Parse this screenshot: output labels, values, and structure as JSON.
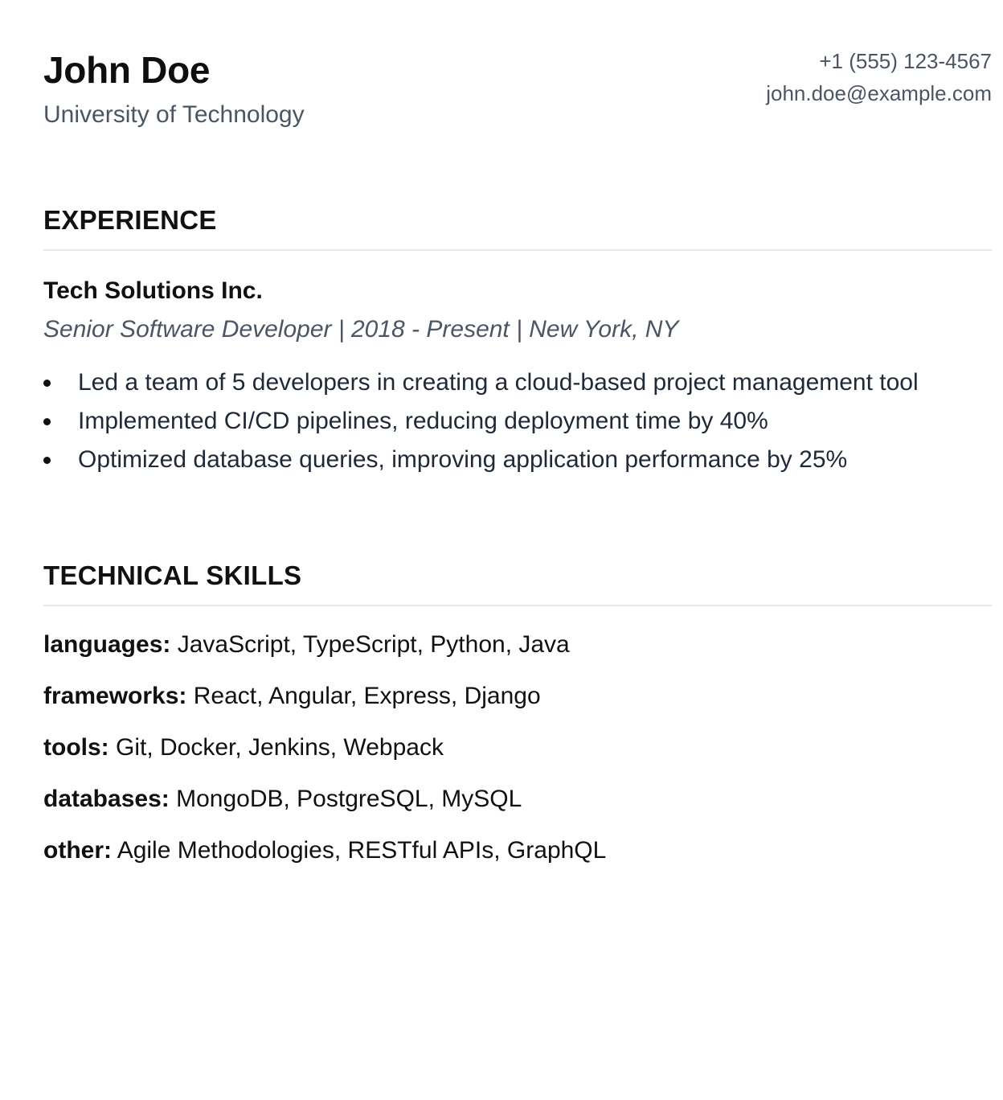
{
  "header": {
    "name": "John Doe",
    "school": "University of Technology",
    "phone": "+1 (555) 123-4567",
    "email": "john.doe@example.com"
  },
  "experience": {
    "title": "EXPERIENCE",
    "company": "Tech Solutions Inc.",
    "role_line": "Senior Software Developer | 2018 - Present | New York, NY",
    "bullets": [
      "Led a team of 5 developers in creating a cloud-based project management tool",
      "Implemented CI/CD pipelines, reducing deployment time by 40%",
      "Optimized database queries, improving application performance by 25%"
    ]
  },
  "skills": {
    "title": "TECHNICAL SKILLS",
    "rows": [
      {
        "key": "languages:",
        "value": "JavaScript, TypeScript, Python, Java"
      },
      {
        "key": "frameworks:",
        "value": "React, Angular, Express, Django"
      },
      {
        "key": "tools:",
        "value": "Git, Docker, Jenkins, Webpack"
      },
      {
        "key": "databases:",
        "value": "MongoDB, PostgreSQL, MySQL"
      },
      {
        "key": "other:",
        "value": "Agile Methodologies, RESTful APIs, GraphQL"
      }
    ]
  }
}
